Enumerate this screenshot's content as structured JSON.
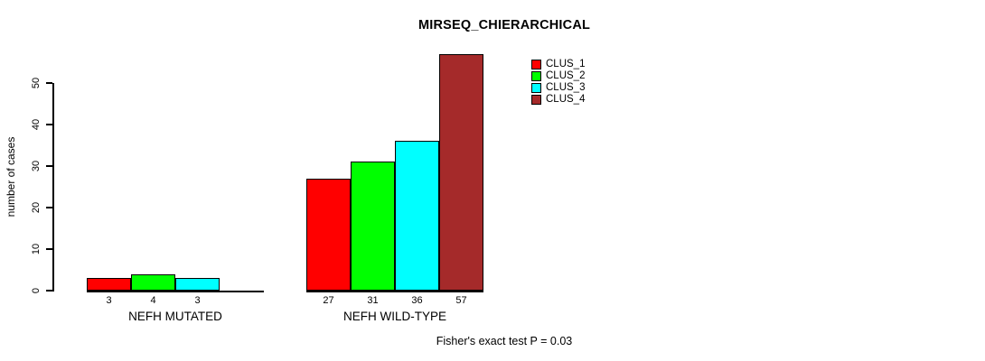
{
  "window": {
    "background": "#FFFFFF"
  },
  "chart_data": {
    "type": "bar",
    "title": "MIRSEQ_CHIERARCHICAL",
    "ylabel": "number of cases",
    "xlabel": "",
    "ylim": [
      0,
      57
    ],
    "yticks": [
      0,
      10,
      20,
      30,
      40,
      50
    ],
    "grid": false,
    "legend_position": "top-right-inside",
    "bar_outline_color": "#000000",
    "categories": [
      "NEFH MUTATED",
      "NEFH WILD-TYPE"
    ],
    "series": [
      {
        "name": "CLUS_1",
        "color": "#FF0000",
        "values": [
          3,
          27
        ]
      },
      {
        "name": "CLUS_2",
        "color": "#00FF00",
        "values": [
          4,
          31
        ]
      },
      {
        "name": "CLUS_3",
        "color": "#00FFFF",
        "values": [
          3,
          36
        ]
      },
      {
        "name": "CLUS_4",
        "color": "#A52A2A",
        "values": [
          0,
          57
        ]
      }
    ],
    "value_labels": {
      "show": true,
      "hide_zero": true
    },
    "annotation": "Fisher's exact test P = 0.03"
  }
}
